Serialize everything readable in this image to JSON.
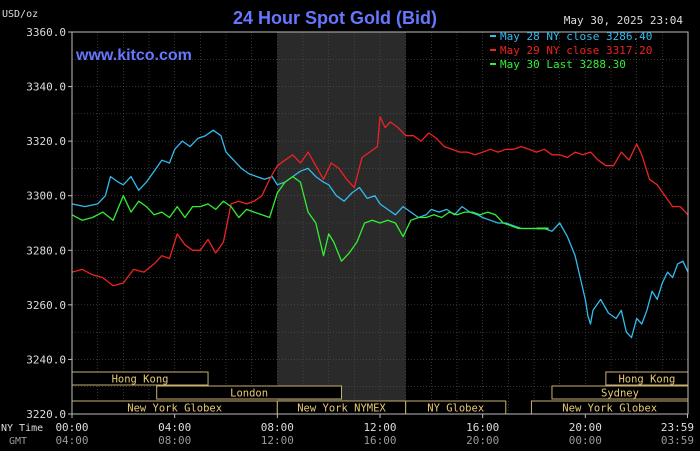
{
  "chart_data": {
    "type": "line",
    "title": "24 Hour Spot Gold (Bid)",
    "ylabel": "USD/oz",
    "timestamp": "May 30, 2025 23:04",
    "watermark": "www.kitco.com",
    "ylim": [
      3220,
      3360
    ],
    "yticks": [
      "3360.0",
      "3340.0",
      "3320.0",
      "3300.0",
      "3280.0",
      "3260.0",
      "3240.0",
      "3220.0"
    ],
    "ytick_values": [
      3360,
      3340,
      3320,
      3300,
      3280,
      3260,
      3240,
      3220
    ],
    "xlim": [
      0,
      24
    ],
    "x_unit": "hours (NY Time)",
    "nytime_label": "NY Time",
    "gmt_label": "GMT",
    "xticks_ny": [
      "00:00",
      "04:00",
      "08:00",
      "12:00",
      "16:00",
      "20:00",
      "23:59"
    ],
    "xticks_gmt": [
      "04:00",
      "08:00",
      "12:00",
      "16:00",
      "20:00",
      "00:00",
      "03:59"
    ],
    "xtick_hours": [
      0,
      4,
      8,
      12,
      16,
      20,
      23.98
    ],
    "grid": true,
    "legend_position": "top-right",
    "shaded_session": {
      "start": 8,
      "end": 13
    },
    "sessions": [
      {
        "label": "Hong Kong",
        "start": 0,
        "end": 5.3,
        "row": 0
      },
      {
        "label": "London",
        "start": 3.3,
        "end": 10.5,
        "row": 1
      },
      {
        "label": "New York Globex",
        "start": 0,
        "end": 8,
        "row": 2
      },
      {
        "label": "New York NYMEX",
        "start": 8,
        "end": 13,
        "row": 2
      },
      {
        "label": "NY Globex",
        "start": 13,
        "end": 16.9,
        "row": 2
      },
      {
        "label": "Hong Kong",
        "start": 20.8,
        "end": 24,
        "row": 0
      },
      {
        "label": "Sydney",
        "start": 18.7,
        "end": 24,
        "row": 1
      },
      {
        "label": "New York Globex",
        "start": 17.9,
        "end": 24,
        "row": 2
      }
    ],
    "series": [
      {
        "name": "May 28 NY close 3286.40",
        "color": "#33bbee",
        "x": [
          0,
          0.5,
          1,
          1.3,
          1.5,
          1.8,
          2,
          2.3,
          2.6,
          2.9,
          3.2,
          3.5,
          3.8,
          4,
          4.3,
          4.6,
          4.9,
          5.2,
          5.5,
          5.8,
          6,
          6.3,
          6.6,
          6.9,
          7.2,
          7.5,
          7.8,
          8,
          8.3,
          8.6,
          8.9,
          9.2,
          9.5,
          9.8,
          10,
          10.3,
          10.6,
          10.9,
          11.2,
          11.5,
          11.8,
          12,
          12.3,
          12.6,
          12.9,
          13.2,
          13.5,
          13.8,
          14,
          14.3,
          14.6,
          14.9,
          15.2,
          15.5,
          15.8,
          16,
          16.3,
          16.6,
          16.9,
          17.2,
          17.5,
          17.8,
          18.1,
          18.4,
          18.7,
          19,
          19.3,
          19.6,
          19.8,
          20,
          20.1,
          20.2,
          20.3,
          20.6,
          20.9,
          21.2,
          21.4,
          21.6,
          21.8,
          22,
          22.2,
          22.4,
          22.6,
          22.8,
          23,
          23.2,
          23.4,
          23.6,
          23.8,
          24
        ],
        "y": [
          3297,
          3296,
          3297,
          3300,
          3307,
          3305,
          3304,
          3307,
          3302,
          3305,
          3309,
          3313,
          3312,
          3317,
          3320,
          3318,
          3321,
          3322,
          3324,
          3322,
          3316,
          3313,
          3310,
          3308,
          3307,
          3306,
          3307,
          3304,
          3305,
          3307,
          3309,
          3310,
          3307,
          3305,
          3304,
          3300,
          3298,
          3301,
          3303,
          3299,
          3300,
          3297,
          3295,
          3293,
          3296,
          3294,
          3292,
          3293,
          3295,
          3294,
          3295,
          3293,
          3296,
          3294,
          3293,
          3292,
          3291,
          3290,
          3290,
          3289,
          3288,
          3288,
          3288,
          3288,
          3287,
          3290,
          3285,
          3278,
          3270,
          3262,
          3256,
          3253,
          3258,
          3262,
          3257,
          3255,
          3258,
          3250,
          3248,
          3255,
          3253,
          3258,
          3265,
          3262,
          3268,
          3272,
          3270,
          3275,
          3276,
          3272
        ]
      },
      {
        "name": "May 29 NY close 3317.20",
        "color": "#ee2222",
        "x": [
          0,
          0.4,
          0.8,
          1.2,
          1.6,
          2,
          2.4,
          2.8,
          3.2,
          3.5,
          3.8,
          4.1,
          4.4,
          4.7,
          5,
          5.3,
          5.6,
          5.9,
          6.2,
          6.5,
          6.8,
          7.1,
          7.4,
          7.7,
          8,
          8.3,
          8.6,
          8.9,
          9.2,
          9.5,
          9.8,
          10.1,
          10.4,
          10.7,
          11,
          11.3,
          11.6,
          11.9,
          12,
          12.2,
          12.4,
          12.7,
          13,
          13.3,
          13.6,
          13.9,
          14.2,
          14.5,
          14.8,
          15.1,
          15.4,
          15.7,
          16,
          16.3,
          16.6,
          16.9,
          17.2,
          17.5,
          17.8,
          18.1,
          18.4,
          18.7,
          19,
          19.3,
          19.6,
          19.9,
          20.2,
          20.5,
          20.8,
          21.1,
          21.4,
          21.7,
          22,
          22.2,
          22.5,
          22.8,
          23.1,
          23.4,
          23.7,
          24
        ],
        "y": [
          3272,
          3273,
          3271,
          3270,
          3267,
          3268,
          3273,
          3272,
          3275,
          3278,
          3277,
          3286,
          3282,
          3280,
          3280,
          3284,
          3279,
          3283,
          3297,
          3298,
          3297,
          3298,
          3300,
          3306,
          3311,
          3313,
          3315,
          3312,
          3316,
          3311,
          3306,
          3312,
          3310,
          3306,
          3303,
          3314,
          3316,
          3318,
          3329,
          3325,
          3327,
          3325,
          3322,
          3322,
          3320,
          3323,
          3321,
          3318,
          3317,
          3316,
          3316,
          3315,
          3316,
          3317,
          3316,
          3317,
          3317,
          3318,
          3317,
          3316,
          3317,
          3315,
          3315,
          3314,
          3316,
          3315,
          3316,
          3313,
          3311,
          3311,
          3316,
          3313,
          3319,
          3315,
          3306,
          3304,
          3300,
          3296,
          3296,
          3293
        ]
      },
      {
        "name": "May 30 Last 3288.30",
        "color": "#33ee33",
        "x": [
          0,
          0.4,
          0.8,
          1.2,
          1.6,
          2,
          2.3,
          2.6,
          2.9,
          3.2,
          3.5,
          3.8,
          4.1,
          4.4,
          4.7,
          5,
          5.3,
          5.6,
          5.9,
          6.2,
          6.5,
          6.8,
          7.1,
          7.4,
          7.7,
          8,
          8.3,
          8.6,
          8.9,
          9.2,
          9.5,
          9.8,
          10,
          10.2,
          10.5,
          10.8,
          11.1,
          11.4,
          11.7,
          12,
          12.3,
          12.6,
          12.9,
          13.2,
          13.5,
          13.8,
          14.1,
          14.4,
          14.7,
          15,
          15.3,
          15.6,
          15.9,
          16.2,
          16.5,
          16.8,
          17.1,
          17.4,
          17.7,
          18,
          18.1
        ],
        "y": [
          3293,
          3291,
          3292,
          3294,
          3291,
          3300,
          3294,
          3298,
          3296,
          3293,
          3294,
          3292,
          3296,
          3292,
          3296,
          3296,
          3297,
          3295,
          3298,
          3296,
          3292,
          3295,
          3294,
          3293,
          3292,
          3301,
          3305,
          3307,
          3305,
          3294,
          3290,
          3278,
          3286,
          3283,
          3276,
          3279,
          3283,
          3290,
          3291,
          3290,
          3291,
          3290,
          3285,
          3291,
          3292,
          3292,
          3293,
          3292,
          3294,
          3293,
          3294,
          3294,
          3293,
          3294,
          3293,
          3290,
          3289,
          3288,
          3288,
          3288,
          3288
        ]
      }
    ]
  }
}
